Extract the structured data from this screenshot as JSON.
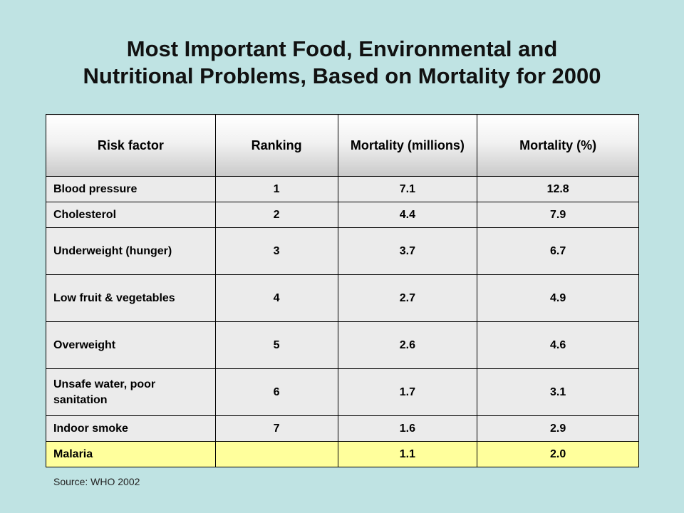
{
  "title": {
    "line1": "Most Important Food, Environmental  and",
    "line2": "Nutritional  Problems, Based on Mortality for 2000"
  },
  "table": {
    "headers": [
      "Risk factor",
      "Ranking",
      "Mortality (millions)",
      "Mortality (%)"
    ],
    "rows": [
      {
        "factor": "Blood pressure",
        "rank": "1",
        "millions": "7.1",
        "percent": "12.8"
      },
      {
        "factor": "Cholesterol",
        "rank": "2",
        "millions": "4.4",
        "percent": "7.9"
      },
      {
        "factor": "Underweight (hunger)",
        "rank": "3",
        "millions": "3.7",
        "percent": "6.7"
      },
      {
        "factor": "Low fruit & vegetables",
        "rank": "4",
        "millions": "2.7",
        "percent": "4.9"
      },
      {
        "factor": "Overweight",
        "rank": "5",
        "millions": "2.6",
        "percent": "4.6"
      },
      {
        "factor": "Unsafe water, poor sanitation",
        "rank": "6",
        "millions": "1.7",
        "percent": "3.1"
      },
      {
        "factor": "Indoor smoke",
        "rank": "7",
        "millions": "1.6",
        "percent": "2.9"
      },
      {
        "factor": "Malaria",
        "rank": "",
        "millions": "1.1",
        "percent": "2.0"
      }
    ]
  },
  "source": "Source: WHO 2002",
  "colors": {
    "background": "#bfe3e3",
    "highlight_row": "#ffff9c",
    "cell": "#ebebeb"
  }
}
